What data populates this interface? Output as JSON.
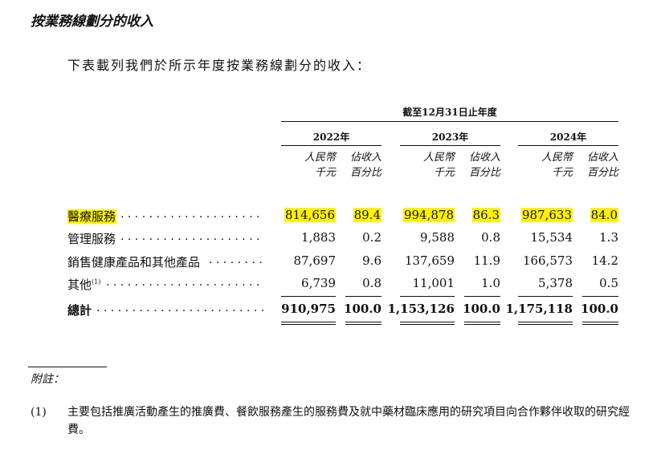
{
  "section": {
    "heading": "按業務線劃分的收入",
    "intro": "下表載列我們於所示年度按業務線劃分的收入："
  },
  "table": {
    "period": "截至12月31日止年度",
    "years": [
      "2022年",
      "2023年",
      "2024年"
    ],
    "col_amount": [
      "人民幣",
      "千元"
    ],
    "col_pct": [
      "佔收入",
      "百分比"
    ],
    "rows": [
      {
        "label": "醫療服務",
        "values": [
          "814,656",
          "89.4",
          "994,878",
          "86.3",
          "987,633",
          "84.0"
        ],
        "highlight": true
      },
      {
        "label": "管理服務",
        "values": [
          "1,883",
          "0.2",
          "9,588",
          "0.8",
          "15,534",
          "1.3"
        ]
      },
      {
        "label": "銷售健康產品和其他產品",
        "values": [
          "87,697",
          "9.6",
          "137,659",
          "11.9",
          "166,573",
          "14.2"
        ]
      },
      {
        "label": "其他",
        "sup": "(1)",
        "values": [
          "6,739",
          "0.8",
          "11,001",
          "1.0",
          "5,378",
          "0.5"
        ]
      }
    ],
    "total": {
      "label": "總計",
      "values": [
        "910,975",
        "100.0",
        "1,153,126",
        "100.0",
        "1,175,118",
        "100.0"
      ]
    },
    "highlight_color": "#fff200"
  },
  "footnotes": {
    "title": "附註：",
    "items": [
      {
        "number": "(1)",
        "text": "主要包括推廣活動產生的推廣費、餐飲服務產生的服務費及就中藥材臨床應用的研究項目向合作夥伴收取的研究經費。"
      }
    ]
  }
}
